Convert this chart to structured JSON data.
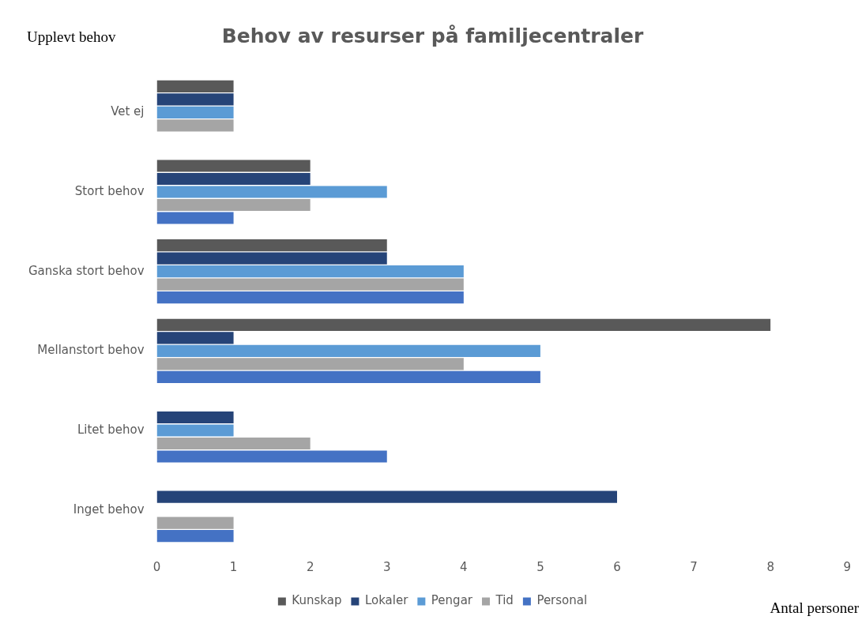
{
  "chart_data": {
    "type": "bar",
    "orientation": "horizontal",
    "title": "Behov av resurser på familjecentraler",
    "ylabel": "Upplevt behov",
    "xlabel": "Antal personer",
    "categories": [
      "Vet ej",
      "Stort behov",
      "Ganska stort behov",
      "Mellanstort behov",
      "Litet behov",
      "Inget behov"
    ],
    "series": [
      {
        "name": "Kunskap",
        "color": "#595959",
        "values": [
          1,
          2,
          3,
          8,
          0,
          0
        ]
      },
      {
        "name": "Lokaler",
        "color": "#264478",
        "values": [
          1,
          2,
          3,
          1,
          1,
          6
        ]
      },
      {
        "name": "Pengar",
        "color": "#5b9bd5",
        "values": [
          1,
          3,
          4,
          5,
          1,
          0
        ]
      },
      {
        "name": "Tid",
        "color": "#a5a5a5",
        "values": [
          1,
          2,
          4,
          4,
          2,
          1
        ]
      },
      {
        "name": "Personal",
        "color": "#4472c4",
        "values": [
          0,
          1,
          4,
          5,
          3,
          1
        ]
      }
    ],
    "xlim": [
      0,
      9
    ],
    "xticks": [
      0,
      1,
      2,
      3,
      4,
      5,
      6,
      7,
      8,
      9
    ],
    "grid": false,
    "legend": "bottom"
  }
}
